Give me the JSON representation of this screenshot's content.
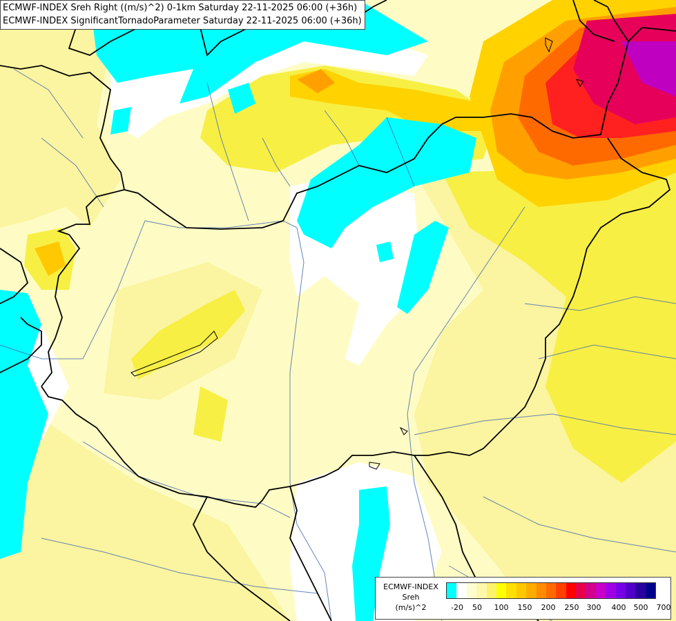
{
  "header": {
    "title_line1": "ECMWF-INDEX Sreh Right ((m/s)^2) 0-1km Saturday 22-11-2025 06:00 (+36h)",
    "title_line2": "ECMWF-INDEX SignificantTornadoParameter Saturday 22-11-2025 06:00 (+36h)"
  },
  "legend": {
    "line1": "ECMWF-INDEX",
    "line2": "Sreh",
    "line3": "(m/s)^2",
    "colors": [
      "#00ffff",
      "#ffffff",
      "#fefdd0",
      "#fdf8aa",
      "#fbf36c",
      "#ffff00",
      "#ffe000",
      "#ffc800",
      "#ffac00",
      "#ff8c00",
      "#ff6a00",
      "#ff4000",
      "#ff0000",
      "#e6004c",
      "#d2008c",
      "#c800c8",
      "#a000e6",
      "#7800e6",
      "#5000c8",
      "#2a00a0",
      "#00008c"
    ],
    "ticks": [
      "-20",
      "50",
      "100",
      "150",
      "200",
      "250",
      "300",
      "400",
      "500",
      "700"
    ]
  },
  "map": {
    "field_colors": {
      "cyan": "#00ffff",
      "white": "#ffffff",
      "pale": "#fefcc4",
      "light_yellow": "#fbf4a0",
      "yellow": "#f7ef44",
      "gold": "#ffd200",
      "orange": "#ffa000",
      "dark_orange": "#ff6a00",
      "red": "#ff2020",
      "crimson": "#e6005a",
      "purple": "#c000c0"
    },
    "border_color": "#000000",
    "river_color": "#4a6fb0"
  }
}
